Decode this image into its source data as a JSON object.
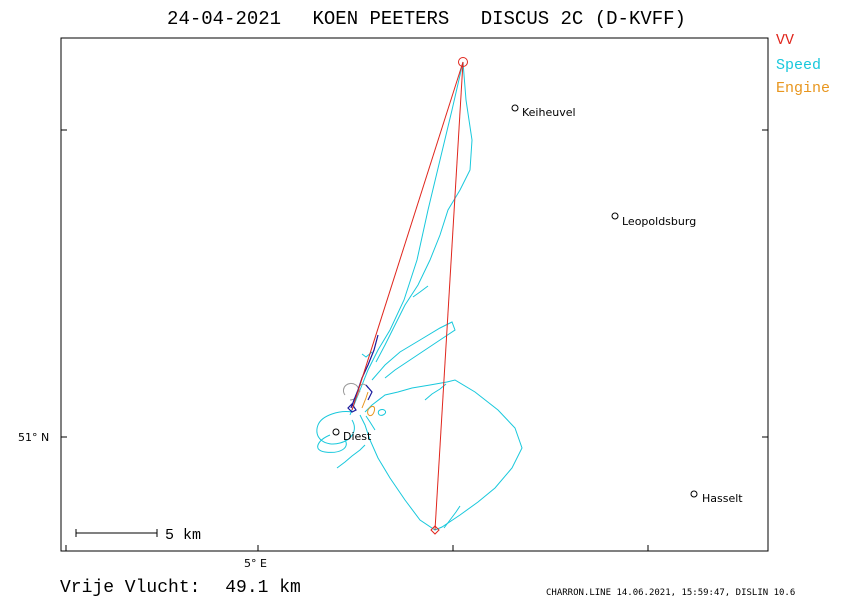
{
  "header": {
    "date": "24-04-2021",
    "pilot": "KOEN PEETERS",
    "glider": "DISCUS 2C (D-KVFF)"
  },
  "legend": [
    {
      "label": "VV",
      "color": "#e0261d"
    },
    {
      "label": "Speed",
      "color": "#18c8dc"
    },
    {
      "label": "Engine",
      "color": "#e8961e"
    }
  ],
  "axes": {
    "x_tick_label": "5° E",
    "y_tick_label": "51° N"
  },
  "places": [
    {
      "name": "Keiheuvel"
    },
    {
      "name": "Leopoldsburg"
    },
    {
      "name": "Diest"
    },
    {
      "name": "Hasselt"
    }
  ],
  "scale_bar": {
    "label": "5 km"
  },
  "footer": {
    "distance_label": "Vrije Vlucht:",
    "distance_value": "49.1 km",
    "credits": "CHARRON.LINE 14.06.2021, 15:59:47, DISLIN 10.6"
  }
}
